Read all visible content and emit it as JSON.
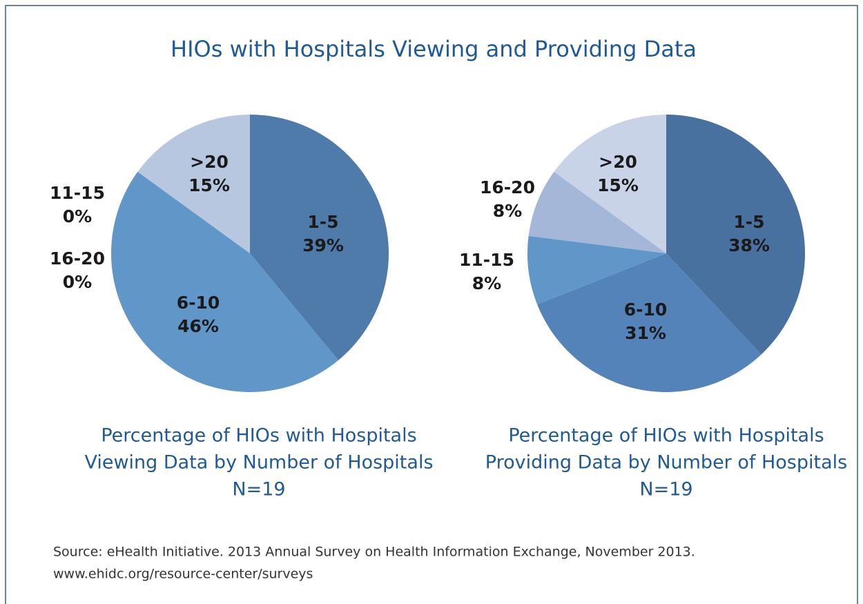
{
  "title": "HIOs with Hospitals Viewing and Providing Data",
  "source": [
    "Source: eHealth Initiative. 2013 Annual Survey on Health Information Exchange, November 2013.",
    "www.ehidc.org/resource-center/surveys"
  ],
  "chart_data": [
    {
      "type": "pie",
      "caption": [
        "Percentage of HIOs with Hospitals",
        "Viewing Data by Number of Hospitals",
        "N=19"
      ],
      "categories": [
        "1-5",
        "6-10",
        "11-15",
        "16-20",
        ">20"
      ],
      "values": [
        39,
        46,
        0,
        0,
        15
      ],
      "value_labels": [
        "39%",
        "46%",
        "0%",
        "0%",
        "15%"
      ],
      "colors": [
        "#4f7bab",
        "#6096c8",
        "#7fa6d2",
        "#a4b7d9",
        "#b8c7e0"
      ]
    },
    {
      "type": "pie",
      "caption": [
        "Percentage of HIOs with Hospitals",
        "Providing Data by Number of Hospitals",
        "N=19"
      ],
      "categories": [
        "1-5",
        "6-10",
        "11-15",
        "16-20",
        ">20"
      ],
      "values": [
        38,
        31,
        8,
        8,
        15
      ],
      "value_labels": [
        "38%",
        "31%",
        "8%",
        "8%",
        "15%"
      ],
      "colors": [
        "#48719f",
        "#5483b9",
        "#6096c8",
        "#a4b7d9",
        "#c8d3e7"
      ]
    }
  ]
}
